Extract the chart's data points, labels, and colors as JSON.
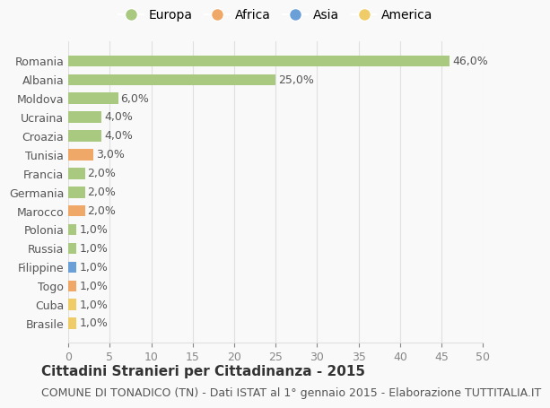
{
  "countries": [
    "Romania",
    "Albania",
    "Moldova",
    "Ucraina",
    "Croazia",
    "Tunisia",
    "Francia",
    "Germania",
    "Marocco",
    "Polonia",
    "Russia",
    "Filippine",
    "Togo",
    "Cuba",
    "Brasile"
  ],
  "values": [
    46.0,
    25.0,
    6.0,
    4.0,
    4.0,
    3.0,
    2.0,
    2.0,
    2.0,
    1.0,
    1.0,
    1.0,
    1.0,
    1.0,
    1.0
  ],
  "continents": [
    "Europa",
    "Europa",
    "Europa",
    "Europa",
    "Europa",
    "Africa",
    "Europa",
    "Europa",
    "Africa",
    "Europa",
    "Europa",
    "Asia",
    "Africa",
    "America",
    "America"
  ],
  "continent_colors": {
    "Europa": "#a8c97f",
    "Africa": "#f0a868",
    "Asia": "#6a9fd8",
    "America": "#f0cc68"
  },
  "legend_order": [
    "Europa",
    "Africa",
    "Asia",
    "America"
  ],
  "title": "Cittadini Stranieri per Cittadinanza - 2015",
  "subtitle": "COMUNE DI TONADICO (TN) - Dati ISTAT al 1° gennaio 2015 - Elaborazione TUTTITALIA.IT",
  "xlim": [
    0,
    50
  ],
  "xticks": [
    0,
    5,
    10,
    15,
    20,
    25,
    30,
    35,
    40,
    45,
    50
  ],
  "bg_color": "#f9f9f9",
  "grid_color": "#e0e0e0",
  "bar_height": 0.6,
  "title_fontsize": 11,
  "subtitle_fontsize": 9,
  "label_fontsize": 9,
  "tick_fontsize": 9,
  "legend_fontsize": 10
}
